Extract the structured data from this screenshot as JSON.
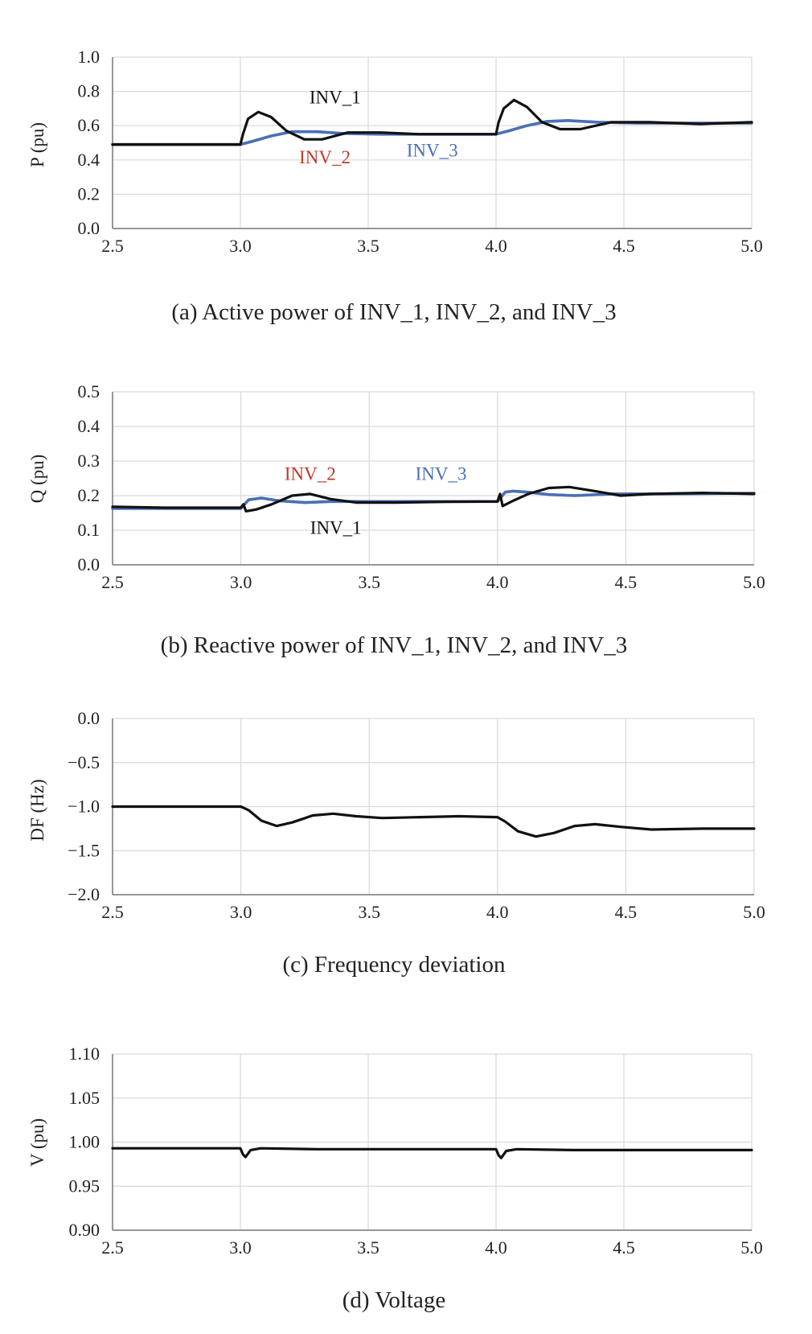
{
  "colors": {
    "inv1": "#111111",
    "inv2": "#c0392b",
    "inv3": "#4a6fb5",
    "grid": "#d9d9d9",
    "axis": "#777777"
  },
  "chart_data": [
    {
      "id": "a",
      "type": "line",
      "title": "(a) Active power of INV_1, INV_2, and INV_3",
      "xlabel": "",
      "ylabel": "P (pu)",
      "xlim": [
        2.5,
        5.0
      ],
      "ylim": [
        0.0,
        1.0
      ],
      "xticks": [
        "2.5",
        "3.0",
        "3.5",
        "4.0",
        "4.5",
        "5.0"
      ],
      "yticks": [
        "0.0",
        "0.2",
        "0.4",
        "0.6",
        "0.8",
        "1.0"
      ],
      "grid": true,
      "annotations": [
        {
          "text": "INV_1",
          "series": "INV_1",
          "x": 3.27,
          "y": 0.73
        },
        {
          "text": "INV_2",
          "series": "INV_2",
          "x": 3.23,
          "y": 0.38
        },
        {
          "text": "INV_3",
          "series": "INV_3",
          "x": 3.65,
          "y": 0.42
        }
      ],
      "series": [
        {
          "name": "INV_1",
          "color": "#111111",
          "x": [
            2.5,
            3.0,
            3.01,
            3.03,
            3.07,
            3.12,
            3.18,
            3.25,
            3.32,
            3.42,
            3.55,
            3.7,
            3.85,
            4.0,
            4.01,
            4.03,
            4.07,
            4.12,
            4.18,
            4.25,
            4.33,
            4.45,
            4.6,
            4.8,
            5.0
          ],
          "y": [
            0.49,
            0.49,
            0.55,
            0.64,
            0.68,
            0.65,
            0.57,
            0.52,
            0.52,
            0.56,
            0.56,
            0.55,
            0.55,
            0.55,
            0.62,
            0.7,
            0.75,
            0.71,
            0.62,
            0.58,
            0.58,
            0.62,
            0.62,
            0.61,
            0.62
          ]
        },
        {
          "name": "INV_2",
          "color": "#c0392b",
          "x": [
            2.5,
            3.0,
            3.05,
            3.12,
            3.2,
            3.3,
            3.4,
            3.55,
            3.7,
            4.0,
            4.05,
            4.12,
            4.2,
            4.28,
            4.4,
            4.55,
            4.7,
            5.0
          ],
          "y": [
            0.49,
            0.49,
            0.51,
            0.54,
            0.565,
            0.565,
            0.555,
            0.55,
            0.55,
            0.55,
            0.57,
            0.6,
            0.625,
            0.63,
            0.62,
            0.615,
            0.615,
            0.615
          ]
        },
        {
          "name": "INV_3",
          "color": "#4a6fb5",
          "x": [
            2.5,
            3.0,
            3.05,
            3.12,
            3.2,
            3.3,
            3.4,
            3.55,
            3.7,
            4.0,
            4.05,
            4.12,
            4.2,
            4.28,
            4.4,
            4.55,
            4.7,
            5.0
          ],
          "y": [
            0.49,
            0.49,
            0.51,
            0.54,
            0.565,
            0.565,
            0.555,
            0.55,
            0.55,
            0.55,
            0.57,
            0.6,
            0.625,
            0.63,
            0.62,
            0.615,
            0.615,
            0.615
          ]
        }
      ]
    },
    {
      "id": "b",
      "type": "line",
      "title": "(b) Reactive power of INV_1, INV_2, and INV_3",
      "xlabel": "",
      "ylabel": "Q (pu)",
      "xlim": [
        2.5,
        5.0
      ],
      "ylim": [
        0.0,
        0.5
      ],
      "xticks": [
        "2.5",
        "3.0",
        "3.5",
        "4.0",
        "4.5",
        "5.0"
      ],
      "yticks": [
        "0.0",
        "0.1",
        "0.2",
        "0.3",
        "0.4",
        "0.5"
      ],
      "grid": true,
      "annotations": [
        {
          "text": "INV_2",
          "series": "INV_2",
          "x": 3.17,
          "y": 0.245
        },
        {
          "text": "INV_3",
          "series": "INV_3",
          "x": 3.68,
          "y": 0.245
        },
        {
          "text": "INV_1",
          "series": "INV_1",
          "x": 3.27,
          "y": 0.09
        }
      ],
      "series": [
        {
          "name": "INV_1",
          "color": "#111111",
          "x": [
            2.5,
            2.7,
            3.0,
            3.01,
            3.02,
            3.06,
            3.12,
            3.2,
            3.27,
            3.35,
            3.45,
            3.6,
            3.8,
            4.0,
            4.01,
            4.02,
            4.06,
            4.12,
            4.2,
            4.28,
            4.38,
            4.48,
            4.6,
            4.8,
            5.0
          ],
          "y": [
            0.168,
            0.165,
            0.165,
            0.175,
            0.155,
            0.16,
            0.175,
            0.2,
            0.205,
            0.19,
            0.18,
            0.18,
            0.182,
            0.183,
            0.205,
            0.17,
            0.185,
            0.205,
            0.222,
            0.225,
            0.213,
            0.2,
            0.205,
            0.208,
            0.205
          ]
        },
        {
          "name": "INV_2",
          "color": "#c0392b",
          "x": [
            2.5,
            3.0,
            3.03,
            3.08,
            3.15,
            3.25,
            3.35,
            3.5,
            3.7,
            4.0,
            4.03,
            4.06,
            4.12,
            4.2,
            4.3,
            4.45,
            4.6,
            5.0
          ],
          "y": [
            0.163,
            0.163,
            0.188,
            0.193,
            0.185,
            0.18,
            0.183,
            0.183,
            0.183,
            0.183,
            0.21,
            0.213,
            0.21,
            0.203,
            0.2,
            0.205,
            0.205,
            0.207
          ]
        },
        {
          "name": "INV_3",
          "color": "#4a6fb5",
          "x": [
            2.5,
            3.0,
            3.03,
            3.08,
            3.15,
            3.25,
            3.35,
            3.5,
            3.7,
            4.0,
            4.03,
            4.06,
            4.12,
            4.2,
            4.3,
            4.45,
            4.6,
            5.0
          ],
          "y": [
            0.163,
            0.163,
            0.188,
            0.193,
            0.185,
            0.18,
            0.183,
            0.183,
            0.183,
            0.183,
            0.21,
            0.213,
            0.21,
            0.203,
            0.2,
            0.205,
            0.205,
            0.207
          ]
        }
      ]
    },
    {
      "id": "c",
      "type": "line",
      "title": "(c) Frequency deviation",
      "xlabel": "",
      "ylabel": "DF (Hz)",
      "xlim": [
        2.5,
        5.0
      ],
      "ylim": [
        -2.0,
        0.0
      ],
      "xticks": [
        "2.5",
        "3.0",
        "3.5",
        "4.0",
        "4.5",
        "5.0"
      ],
      "yticks": [
        "−2.0",
        "−1.5",
        "−1.0",
        "−0.5",
        "0.0"
      ],
      "grid": true,
      "annotations": [],
      "series": [
        {
          "name": "",
          "color": "#111111",
          "x": [
            2.5,
            3.0,
            3.03,
            3.08,
            3.14,
            3.2,
            3.28,
            3.36,
            3.45,
            3.55,
            3.7,
            3.85,
            4.0,
            4.03,
            4.08,
            4.15,
            4.22,
            4.3,
            4.38,
            4.48,
            4.6,
            4.8,
            5.0
          ],
          "y": [
            -1.0,
            -1.0,
            -1.04,
            -1.16,
            -1.22,
            -1.18,
            -1.1,
            -1.08,
            -1.11,
            -1.13,
            -1.12,
            -1.11,
            -1.12,
            -1.17,
            -1.28,
            -1.34,
            -1.3,
            -1.22,
            -1.2,
            -1.23,
            -1.26,
            -1.25,
            -1.25
          ]
        }
      ]
    },
    {
      "id": "d",
      "type": "line",
      "title": "(d) Voltage",
      "xlabel": "",
      "ylabel": "V (pu)",
      "xlim": [
        2.5,
        5.0
      ],
      "ylim": [
        0.9,
        1.1
      ],
      "xticks": [
        "2.5",
        "3.0",
        "3.5",
        "4.0",
        "4.5",
        "5.0"
      ],
      "yticks": [
        "0.90",
        "0.95",
        "1.00",
        "1.05",
        "1.10"
      ],
      "grid": true,
      "annotations": [],
      "series": [
        {
          "name": "",
          "color": "#111111",
          "x": [
            2.5,
            3.0,
            3.01,
            3.02,
            3.04,
            3.08,
            3.3,
            3.6,
            4.0,
            4.01,
            4.02,
            4.04,
            4.08,
            4.3,
            4.6,
            5.0
          ],
          "y": [
            0.993,
            0.993,
            0.986,
            0.983,
            0.991,
            0.993,
            0.992,
            0.992,
            0.992,
            0.985,
            0.982,
            0.99,
            0.992,
            0.991,
            0.991,
            0.991
          ]
        }
      ]
    }
  ]
}
